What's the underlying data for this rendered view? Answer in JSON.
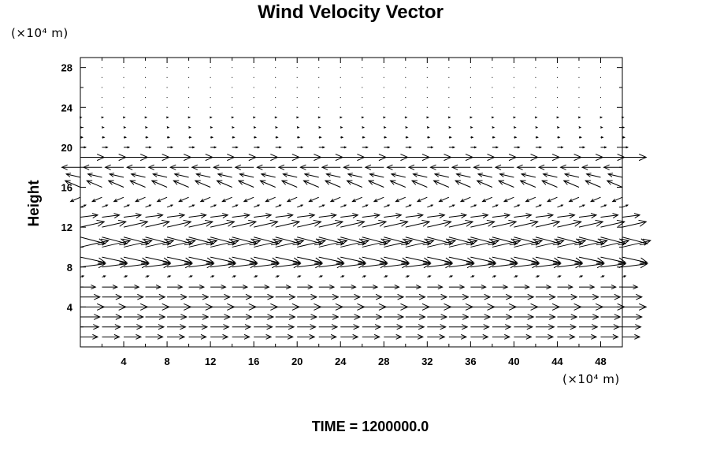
{
  "chart_data": {
    "type": "vector_field",
    "title": "Wind Velocity Vector",
    "ylabel": "Height",
    "x_unit_label": "(×10⁴ m)",
    "y_unit_label": "(×10⁴ m)",
    "xlim": [
      0,
      50
    ],
    "ylim": [
      0,
      29
    ],
    "xticks": [
      4,
      8,
      12,
      16,
      20,
      24,
      28,
      32,
      36,
      40,
      44,
      48
    ],
    "yticks": [
      4,
      8,
      12,
      16,
      20,
      24,
      28
    ],
    "x_grid": [
      0,
      2,
      4,
      6,
      8,
      10,
      12,
      14,
      16,
      18,
      20,
      22,
      24,
      26,
      28,
      30,
      32,
      34,
      36,
      38,
      40,
      42,
      44,
      46,
      48,
      50
    ],
    "layers": [
      {
        "y": 1,
        "u": 1.6,
        "w": 0
      },
      {
        "y": 2,
        "u": 1.7,
        "w": 0
      },
      {
        "y": 3,
        "u": 1.8,
        "w": 0
      },
      {
        "y": 4,
        "u": 2.2,
        "w": 0
      },
      {
        "y": 5,
        "u": 1.8,
        "w": 0
      },
      {
        "y": 6,
        "u": 1.4,
        "w": 0
      },
      {
        "y": 7,
        "u": 0.3,
        "w": 0.1
      },
      {
        "y": 8,
        "u": 2.3,
        "w": 0.3
      },
      {
        "y": 9,
        "u": 2.3,
        "w": -0.5
      },
      {
        "y": 10,
        "u": 2.6,
        "w": 0.6
      },
      {
        "y": 11,
        "u": 2.3,
        "w": -0.6
      },
      {
        "y": 12,
        "u": 2.2,
        "w": 0.5
      },
      {
        "y": 13,
        "u": 1.6,
        "w": 0.2
      },
      {
        "y": 14,
        "u": 0.5,
        "w": 0.2
      },
      {
        "y": 15,
        "u": -0.9,
        "w": -0.4
      },
      {
        "y": 16,
        "u": -1.4,
        "w": 0.6
      },
      {
        "y": 17,
        "u": -1.3,
        "w": 0.3
      },
      {
        "y": 18,
        "u": -1.7,
        "w": 0
      },
      {
        "y": 19,
        "u": 2.2,
        "w": 0
      },
      {
        "y": 20,
        "u": 0.5,
        "w": 0
      },
      {
        "y": 21,
        "u": 0.2,
        "w": 0
      },
      {
        "y": 22,
        "u": 0.15,
        "w": 0
      },
      {
        "y": 23,
        "u": 0.1,
        "w": 0
      },
      {
        "y": 24,
        "u": 0.08,
        "w": 0
      },
      {
        "y": 25,
        "u": 0.06,
        "w": 0
      },
      {
        "y": 26,
        "u": 0.05,
        "w": 0
      },
      {
        "y": 27,
        "u": 0.04,
        "w": 0
      },
      {
        "y": 28,
        "u": 0.03,
        "w": 0
      }
    ]
  },
  "footer": {
    "time_label": "TIME = 1200000.0"
  }
}
